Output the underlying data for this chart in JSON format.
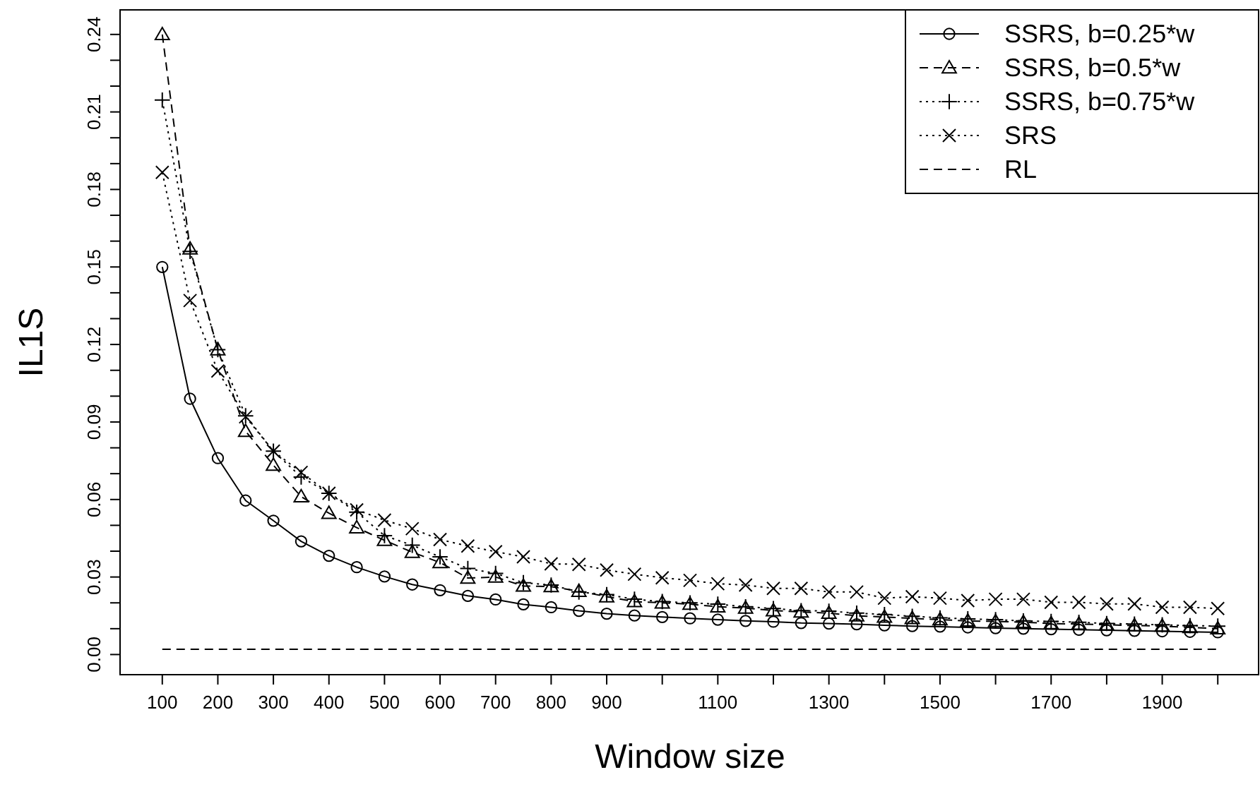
{
  "chart_data": {
    "type": "line",
    "xlabel": "Window size",
    "ylabel": "IL1S",
    "x": [
      100,
      150,
      200,
      250,
      300,
      350,
      400,
      450,
      500,
      550,
      600,
      650,
      700,
      750,
      800,
      850,
      900,
      950,
      1000,
      1050,
      1100,
      1150,
      1200,
      1250,
      1300,
      1350,
      1400,
      1450,
      1500,
      1550,
      1600,
      1650,
      1700,
      1750,
      1800,
      1850,
      1900,
      1950,
      2000
    ],
    "xlim": [
      24,
      2076
    ],
    "xticks": [
      100,
      200,
      300,
      400,
      500,
      600,
      700,
      800,
      900,
      {
        "value": 1000,
        "label": null
      },
      1100,
      {
        "value": 1200,
        "label": null
      },
      1300,
      {
        "value": 1400,
        "label": null
      },
      1500,
      {
        "value": 1600,
        "label": null
      },
      1700,
      {
        "value": 1800,
        "label": null
      },
      1900,
      {
        "value": 2000,
        "label": null
      }
    ],
    "ylim": [
      -0.0078,
      0.2495
    ],
    "yticks": [
      {
        "value": 0,
        "label": "0.00"
      },
      {
        "value": 0.01,
        "label": null
      },
      {
        "value": 0.02,
        "label": null
      },
      0.03,
      {
        "value": 0.04,
        "label": null
      },
      {
        "value": 0.05,
        "label": null
      },
      0.06,
      {
        "value": 0.07,
        "label": null
      },
      {
        "value": 0.08,
        "label": null
      },
      0.09,
      {
        "value": 0.1,
        "label": null
      },
      {
        "value": 0.11,
        "label": null
      },
      0.12,
      {
        "value": 0.13,
        "label": null
      },
      {
        "value": 0.14,
        "label": null
      },
      0.15,
      {
        "value": 0.16,
        "label": null
      },
      {
        "value": 0.17,
        "label": null
      },
      0.18,
      {
        "value": 0.19,
        "label": null
      },
      {
        "value": 0.2,
        "label": null
      },
      0.21,
      {
        "value": 0.22,
        "label": null
      },
      {
        "value": 0.23,
        "label": null
      },
      0.24
    ],
    "legend": "top right",
    "series": [
      {
        "name": "SSRS, b=0.25*w",
        "color": "#000000",
        "marker": "circle",
        "line_style": "solid",
        "values": [
          0.15,
          0.099,
          0.076,
          0.0596,
          0.0518,
          0.0438,
          0.0382,
          0.0338,
          0.0302,
          0.0271,
          0.0249,
          0.0227,
          0.0213,
          0.0194,
          0.0183,
          0.0169,
          0.0158,
          0.0151,
          0.0145,
          0.014,
          0.0135,
          0.013,
          0.0127,
          0.0122,
          0.012,
          0.0117,
          0.0113,
          0.011,
          0.0108,
          0.0105,
          0.0102,
          0.01,
          0.0098,
          0.0096,
          0.0094,
          0.0092,
          0.009,
          0.0088,
          0.0086
        ]
      },
      {
        "name": "SSRS, b=0.5*w",
        "color": "#000000",
        "marker": "triangle",
        "line_style": "dashed",
        "values": [
          0.24,
          0.157,
          0.118,
          0.0864,
          0.0733,
          0.0611,
          0.0547,
          0.0491,
          0.0442,
          0.0396,
          0.0356,
          0.0296,
          0.03,
          0.0265,
          0.0263,
          0.0245,
          0.0224,
          0.0205,
          0.02,
          0.0195,
          0.0185,
          0.018,
          0.017,
          0.0165,
          0.016,
          0.015,
          0.0145,
          0.014,
          0.0135,
          0.013,
          0.0128,
          0.0125,
          0.012,
          0.0118,
          0.0115,
          0.0112,
          0.011,
          0.0105,
          0.01
        ]
      },
      {
        "name": "SSRS, b=0.75*w",
        "color": "#000000",
        "marker": "cross",
        "line_style": "dotted",
        "values": [
          0.2146,
          0.156,
          0.118,
          0.0924,
          0.0787,
          0.0687,
          0.0624,
          0.0551,
          0.046,
          0.0423,
          0.0378,
          0.0333,
          0.0314,
          0.0278,
          0.0269,
          0.0242,
          0.0232,
          0.0214,
          0.0205,
          0.02,
          0.0195,
          0.0185,
          0.0178,
          0.017,
          0.0168,
          0.016,
          0.0155,
          0.0148,
          0.0142,
          0.0138,
          0.0135,
          0.013,
          0.0128,
          0.0125,
          0.012,
          0.0118,
          0.0115,
          0.0112,
          0.011
        ]
      },
      {
        "name": "SRS",
        "color": "#000000",
        "marker": "x",
        "line_style": "dotted",
        "values": [
          0.1866,
          0.137,
          0.1097,
          0.092,
          0.0787,
          0.0705,
          0.0624,
          0.056,
          0.052,
          0.0487,
          0.0445,
          0.042,
          0.0398,
          0.0378,
          0.0351,
          0.0349,
          0.0327,
          0.0311,
          0.0297,
          0.0287,
          0.0274,
          0.0269,
          0.0256,
          0.0256,
          0.0242,
          0.0242,
          0.0218,
          0.0224,
          0.0218,
          0.0209,
          0.0214,
          0.0214,
          0.0202,
          0.0202,
          0.0196,
          0.0196,
          0.0183,
          0.0183,
          0.0178
        ]
      },
      {
        "name": "RL",
        "color": "#000000",
        "marker": "none",
        "line_style": "dashed",
        "values": [
          0.002,
          0.002,
          0.002,
          0.002,
          0.002,
          0.002,
          0.002,
          0.002,
          0.002,
          0.002,
          0.002,
          0.002,
          0.002,
          0.002,
          0.002,
          0.002,
          0.002,
          0.002,
          0.002,
          0.002,
          0.002,
          0.002,
          0.002,
          0.002,
          0.002,
          0.002,
          0.002,
          0.002,
          0.002,
          0.002,
          0.002,
          0.002,
          0.002,
          0.002,
          0.002,
          0.002,
          0.002,
          0.002,
          0.002
        ]
      }
    ]
  }
}
